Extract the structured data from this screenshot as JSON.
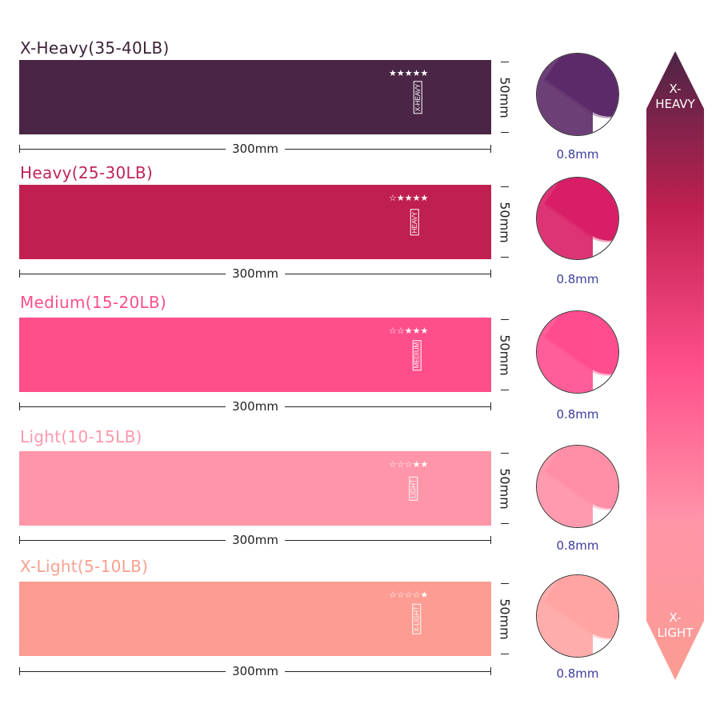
{
  "bands": [
    {
      "title": "X-Heavy(35-40LB)",
      "tag": "X-HEAVY",
      "stars": "★★★★★",
      "length": "300mm",
      "width": "50mm",
      "thickness": "0.8mm",
      "color": "#4a2545",
      "title_color": "#3c2238",
      "circle_color": "#5c2a68"
    },
    {
      "title": "Heavy(25-30LB)",
      "tag": "HEAVY",
      "stars": "☆★★★★",
      "length": "300mm",
      "width": "50mm",
      "thickness": "0.8mm",
      "color": "#c02050",
      "title_color": "#c0245a",
      "circle_color": "#d81e66"
    },
    {
      "title": "Medium(15-20LB)",
      "tag": "MEDIUM",
      "stars": "☆☆★★★",
      "length": "300mm",
      "width": "50mm",
      "thickness": "0.8mm",
      "color": "#ff4f8b",
      "title_color": "#ff4f8b",
      "circle_color": "#ff4d8e"
    },
    {
      "title": "Light(10-15LB)",
      "tag": "LIGHT",
      "stars": "☆☆☆★★",
      "length": "300mm",
      "width": "50mm",
      "thickness": "0.8mm",
      "color": "#ff95a8",
      "title_color": "#ff98ac",
      "circle_color": "#ff8fa6"
    },
    {
      "title": "X-Light(5-10LB)",
      "tag": "X-LIGHT",
      "stars": "☆☆☆☆★",
      "length": "300mm",
      "width": "50mm",
      "thickness": "0.8mm",
      "color": "#fc9c92",
      "title_color": "#f9a090",
      "circle_color": "#ffa3a3"
    }
  ],
  "scale": {
    "top_label_1": "X-",
    "top_label_2": "HEAVY",
    "bottom_label_1": "X-",
    "bottom_label_2": "LIGHT",
    "gradient": [
      "#4a2545",
      "#c02050",
      "#ff4f8b",
      "#ff95a8",
      "#fc9c92"
    ]
  }
}
